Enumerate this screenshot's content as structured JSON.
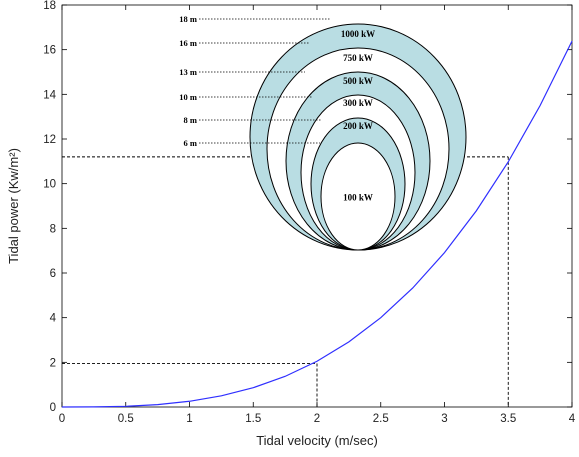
{
  "chart_data": {
    "type": "line",
    "xlabel": "Tidal velocity (m/sec)",
    "ylabel": "Tidal power (Kw/m²)",
    "xlim": [
      0,
      4
    ],
    "ylim": [
      0,
      18
    ],
    "xticks": [
      "0",
      "0.5",
      "1",
      "1.5",
      "2",
      "2.5",
      "3",
      "3.5",
      "4"
    ],
    "yticks": [
      "0",
      "2",
      "4",
      "6",
      "8",
      "10",
      "12",
      "14",
      "16",
      "18"
    ],
    "grid": false,
    "series": [
      {
        "color": "#2f2fff",
        "x": [
          0,
          0.25,
          0.5,
          0.75,
          1,
          1.25,
          1.5,
          1.75,
          2,
          2.25,
          2.5,
          2.75,
          3,
          3.25,
          3.5,
          3.75,
          4
        ],
        "y": [
          0,
          0.004,
          0.032,
          0.108,
          0.256,
          0.5,
          0.864,
          1.372,
          2.048,
          2.916,
          4.0,
          5.324,
          6.912,
          8.788,
          10.976,
          13.5,
          16.384
        ]
      }
    ],
    "reference_lines": [
      {
        "x": 2,
        "y": 1.95
      },
      {
        "x": 3.5,
        "y": 11.2
      }
    ],
    "inset": {
      "circles": [
        {
          "diameter_label": "18 m",
          "power_label": "1000 kW",
          "fill": "#b9dde3"
        },
        {
          "diameter_label": "16 m",
          "power_label": "750 kW",
          "fill": "#ffffff"
        },
        {
          "diameter_label": "13 m",
          "power_label": "500 kW",
          "fill": "#b9dde3"
        },
        {
          "diameter_label": "10 m",
          "power_label": "300 kW",
          "fill": "#ffffff"
        },
        {
          "diameter_label": "8 m",
          "power_label": "200 kW",
          "fill": "#b9dde3"
        },
        {
          "diameter_label": "6 m",
          "power_label": "100 kW",
          "fill": "#ffffff"
        }
      ]
    }
  }
}
